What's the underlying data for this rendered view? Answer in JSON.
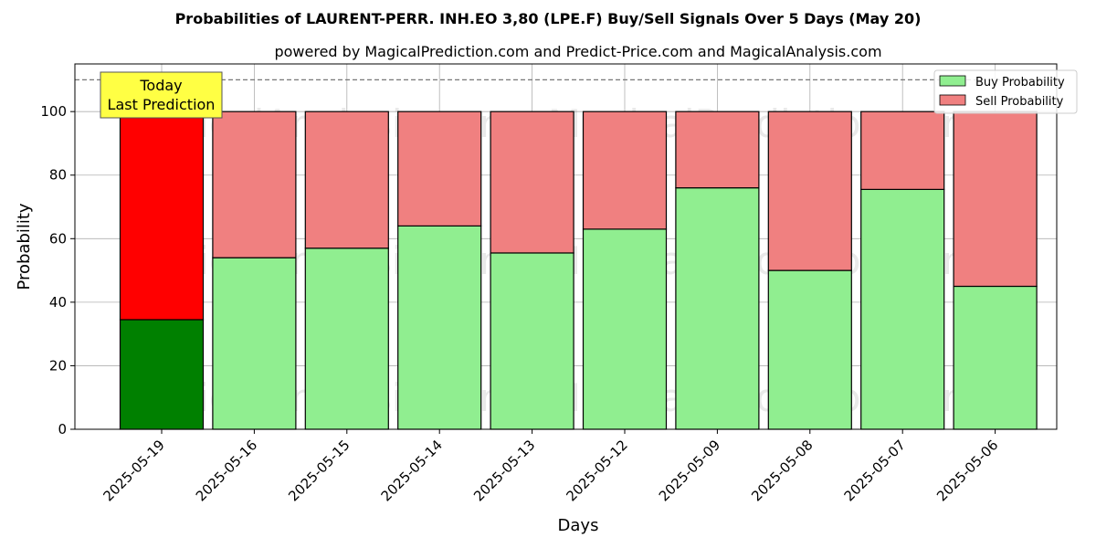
{
  "chart_data": {
    "type": "bar",
    "stacked": true,
    "title": "Probabilities of LAURENT-PERR. INH.EO 3,80 (LPE.F) Buy/Sell Signals Over 5 Days (May 20)",
    "subtitle": "powered by MagicalPrediction.com and Predict-Price.com and MagicalAnalysis.com",
    "xlabel": "Days",
    "ylabel": "Probability",
    "ylim": [
      0,
      115
    ],
    "yticks": [
      0,
      20,
      40,
      60,
      80,
      100
    ],
    "grid": true,
    "legend_placement": "top-right",
    "categories": [
      "2025-05-19",
      "2025-05-16",
      "2025-05-15",
      "2025-05-14",
      "2025-05-13",
      "2025-05-12",
      "2025-05-09",
      "2025-05-08",
      "2025-05-07",
      "2025-05-06"
    ],
    "series": [
      {
        "name": "Buy Probability",
        "values": [
          34.5,
          54,
          57,
          64,
          55.5,
          63,
          76,
          50,
          75.5,
          45
        ]
      },
      {
        "name": "Sell Probability",
        "values": [
          65.5,
          46,
          43,
          36,
          44.5,
          37,
          24,
          50,
          24.5,
          55
        ]
      }
    ],
    "reference_line": 110,
    "highlight_index": 0,
    "annotation": {
      "line1": "Today",
      "line2": "Last Prediction"
    },
    "colors": {
      "buy": "#90ee90",
      "sell": "#f08080",
      "buy_highlight": "#008000",
      "sell_highlight": "#ff0000",
      "annotation_bg": "#ffff44"
    },
    "watermarks": [
      "MagicalAnalysis.com",
      "MagicalPrediction.com"
    ]
  }
}
